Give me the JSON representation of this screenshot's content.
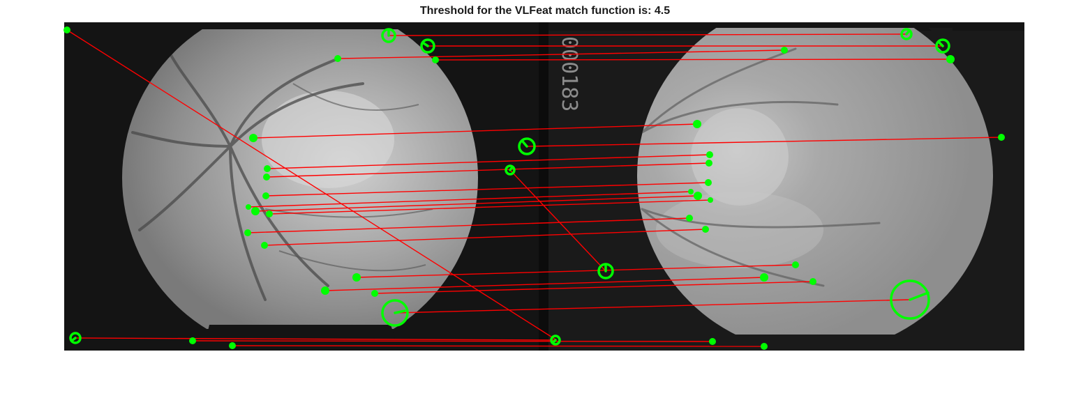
{
  "figure": {
    "title": "Threshold for the VLFeat match function is: 4.5",
    "imprint_text": "000183",
    "colors": {
      "background": "#ffffff",
      "frame": "#141414",
      "fundus_left": "#9a9a9a",
      "fundus_right": "#a0a0a0",
      "match_line": "#ff0000",
      "keypoint": "#00ff00"
    }
  }
}
